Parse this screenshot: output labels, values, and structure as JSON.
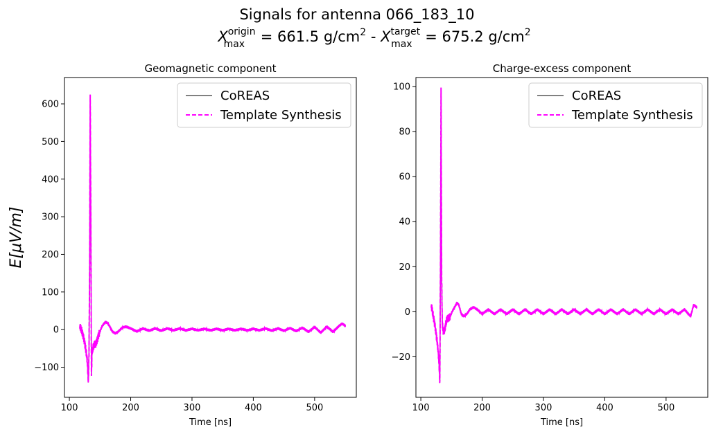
{
  "figure": {
    "title_line1": "Signals for antenna 066_183_10",
    "title_line2": {
      "x_symbol": "X",
      "origin_sup": "origin",
      "origin_sub": "max",
      "origin_value": " =  661.5 g/cm",
      "exp": "2",
      "separator": " -  ",
      "target_sup": "target",
      "target_sub": "max",
      "target_value": " =  675.2 g/cm"
    },
    "ylabel": "E[μV/m]"
  },
  "colors": {
    "coreas": "#808080",
    "template": "#ff00ff"
  },
  "chart_data": [
    {
      "type": "line",
      "title": "Geomagnetic component",
      "xlabel": "Time [ns]",
      "xlim": [
        92,
        568
      ],
      "ylim": [
        -180,
        670
      ],
      "xticks": [
        100,
        200,
        300,
        400,
        500
      ],
      "yticks": [
        -100,
        0,
        100,
        200,
        300,
        400,
        500,
        600
      ],
      "legend_position": "top-right",
      "series": [
        {
          "name": "CoREAS",
          "style": "solid",
          "color": "#808080"
        },
        {
          "name": "Template Synthesis",
          "style": "dashed",
          "color": "#ff00ff"
        }
      ],
      "signal": {
        "t_start": 117,
        "t_end": 550,
        "t_pulse": 134,
        "peak_max": 632,
        "peak_min": -145,
        "x": [
          117,
          119,
          121,
          123,
          125,
          127,
          129,
          130,
          131,
          132,
          133,
          134,
          135,
          136,
          137,
          139,
          141,
          143,
          145,
          147,
          150,
          153,
          156,
          159,
          162,
          166,
          170,
          175,
          180,
          186,
          192,
          200,
          210,
          220,
          230,
          240,
          250,
          260,
          270,
          280,
          290,
          300,
          310,
          320,
          330,
          340,
          350,
          360,
          370,
          380,
          390,
          400,
          410,
          420,
          430,
          440,
          450,
          460,
          470,
          480,
          490,
          500,
          510,
          520,
          530,
          540,
          545,
          550
        ],
        "y": [
          10,
          2,
          -8,
          -20,
          -35,
          -55,
          -80,
          -110,
          -140,
          -60,
          150,
          632,
          300,
          -120,
          -60,
          -45,
          -40,
          -38,
          -30,
          -18,
          -5,
          8,
          15,
          20,
          18,
          8,
          -5,
          -10,
          -5,
          5,
          8,
          3,
          -5,
          3,
          -3,
          3,
          -3,
          3,
          -2,
          3,
          -2,
          2,
          -2,
          2,
          -2,
          2,
          -2,
          2,
          -2,
          2,
          -2,
          2,
          -2,
          3,
          -3,
          3,
          -3,
          4,
          -4,
          5,
          -6,
          7,
          -8,
          8,
          -6,
          10,
          16,
          10
        ]
      }
    },
    {
      "type": "line",
      "title": "Charge-excess component",
      "xlabel": "Time [ns]",
      "xlim": [
        92,
        568
      ],
      "ylim": [
        -38,
        104
      ],
      "xticks": [
        100,
        200,
        300,
        400,
        500
      ],
      "yticks": [
        -20,
        0,
        20,
        40,
        60,
        80,
        100
      ],
      "legend_position": "top-right",
      "series": [
        {
          "name": "CoREAS",
          "style": "solid",
          "color": "#808080"
        },
        {
          "name": "Template Synthesis",
          "style": "dashed",
          "color": "#ff00ff"
        }
      ],
      "signal": {
        "t_start": 117,
        "t_end": 550,
        "t_pulse": 133,
        "peak_max": 98,
        "peak_min": -32,
        "x": [
          117,
          119,
          121,
          123,
          125,
          127,
          129,
          130,
          131,
          132,
          133,
          134,
          135,
          136,
          137,
          139,
          141,
          143,
          145,
          148,
          151,
          155,
          159,
          162,
          166,
          170,
          175,
          180,
          186,
          192,
          200,
          210,
          220,
          230,
          240,
          250,
          260,
          270,
          280,
          290,
          300,
          310,
          320,
          330,
          340,
          350,
          360,
          370,
          380,
          390,
          400,
          410,
          420,
          430,
          440,
          450,
          460,
          470,
          480,
          490,
          500,
          510,
          520,
          530,
          540,
          545,
          550
        ],
        "y": [
          3,
          0,
          -3,
          -6,
          -10,
          -14,
          -20,
          -25,
          -32,
          20,
          98,
          15,
          -5,
          -8,
          -9,
          -8,
          -5,
          -3,
          -3,
          -2,
          0,
          2,
          4,
          3,
          -1,
          -2,
          -1,
          1,
          2,
          1,
          -1,
          1,
          -1,
          1,
          -1,
          1,
          -1,
          1,
          -1,
          1,
          -1,
          1,
          -1,
          1,
          -1,
          1,
          -1,
          1,
          -1,
          1,
          -1,
          1,
          -1,
          1,
          -1,
          1,
          -1,
          1,
          -1,
          1,
          -1,
          1,
          -1,
          1,
          -2,
          3,
          2
        ]
      }
    }
  ]
}
